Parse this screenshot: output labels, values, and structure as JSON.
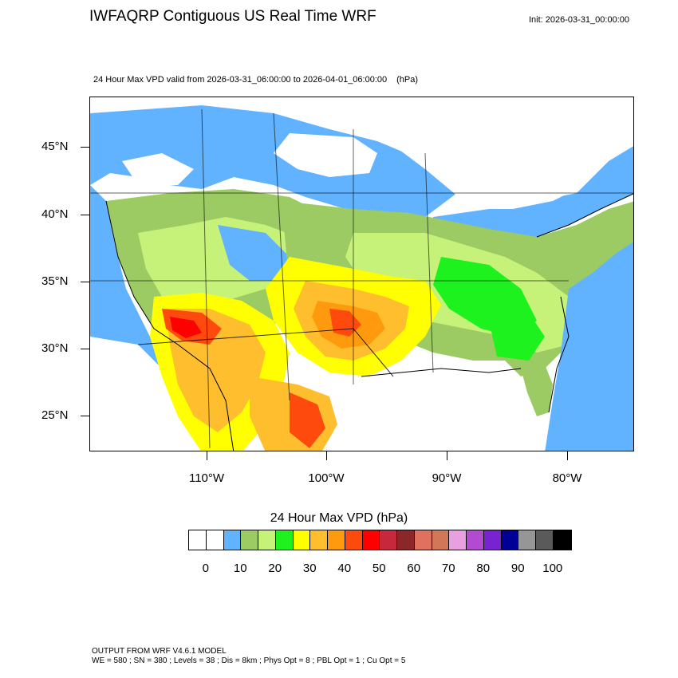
{
  "title": "IWFAQRP Contiguous US Real Time WRF",
  "init": "Init: 2026-03-31_00:00:00",
  "subtitle": "24 Hour Max VPD valid from 2026-03-31_06:00:00 to 2026-04-01_06:00:00",
  "subtitle_unit": "(hPa)",
  "lat_labels": [
    "45°N",
    "40°N",
    "35°N",
    "30°N",
    "25°N"
  ],
  "lon_labels": [
    "110°W",
    "100°W",
    "90°W",
    "80°W"
  ],
  "colorbar": {
    "title": "24 Hour Max VPD  (hPa)",
    "colors": [
      "#ffffff",
      "#ffffff",
      "#62b3ff",
      "#9ccb63",
      "#c7f27a",
      "#1ef21e",
      "#ffff00",
      "#ffbe2e",
      "#ff9a0e",
      "#ff4a0e",
      "#ff0000",
      "#c8283c",
      "#8c2628",
      "#e07060",
      "#d27858",
      "#e8a0e0",
      "#b24ad2",
      "#7822d2",
      "#000096",
      "#969696",
      "#5a5a5a",
      "#000000"
    ],
    "tick_labels": [
      "0",
      "10",
      "20",
      "30",
      "40",
      "50",
      "60",
      "70",
      "80",
      "90",
      "100"
    ]
  },
  "footer": {
    "line1": "OUTPUT FROM WRF V4.6.1 MODEL",
    "line2": "WE = 580 ; SN = 380 ; Levels = 38 ; Dis = 8km ; Phys Opt = 8 ; PBL Opt = 1 ; Cu Opt = 5"
  },
  "colors": {
    "ocean_low": "#62b3ff",
    "land_low": "#9ccb63",
    "land_mid": "#c7f27a",
    "green": "#1ef21e",
    "yellow": "#ffff00",
    "orange": "#ffbe2e",
    "dark_orange": "#ff9a0e",
    "red_orange": "#ff4a0e",
    "red": "#ff0000"
  }
}
